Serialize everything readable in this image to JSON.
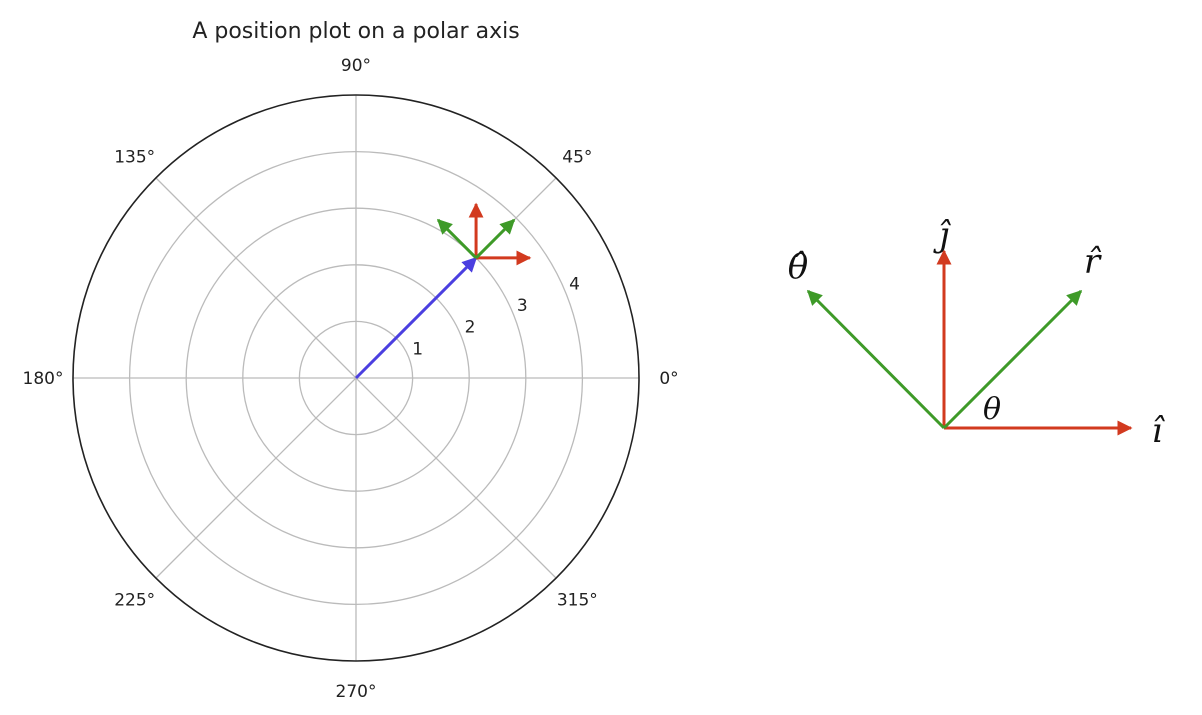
{
  "chart_data": [
    {
      "type": "polar",
      "title": "A position plot on a polar axis",
      "theta_ticks": [
        "0°",
        "45°",
        "90°",
        "135°",
        "180°",
        "225°",
        "270°",
        "315°"
      ],
      "theta_tick_values": [
        0,
        45,
        90,
        135,
        180,
        225,
        270,
        315
      ],
      "r_ticks": [
        "1",
        "2",
        "3",
        "4"
      ],
      "r_tick_values": [
        1,
        2,
        3,
        4
      ],
      "r_max": 5,
      "r_label_angle": 22.5,
      "grid": true,
      "position_vector": {
        "r": 3,
        "theta": 45,
        "color": "#4b3fe0"
      },
      "unit_vectors_at_point": [
        {
          "name": "i-hat",
          "direction_deg": 0,
          "color": "#d23a1f"
        },
        {
          "name": "j-hat",
          "direction_deg": 90,
          "color": "#d23a1f"
        },
        {
          "name": "r-hat",
          "direction_deg": 45,
          "color": "#3e9a28"
        },
        {
          "name": "theta-hat",
          "direction_deg": 135,
          "color": "#3e9a28"
        }
      ]
    },
    {
      "type": "diagram",
      "vectors": [
        {
          "name": "i-hat",
          "label": "î",
          "direction_deg": 0,
          "color": "#d23a1f"
        },
        {
          "name": "j-hat",
          "label": "ĵ",
          "direction_deg": 90,
          "color": "#d23a1f"
        },
        {
          "name": "r-hat",
          "label": "r̂",
          "direction_deg": 45,
          "color": "#3e9a28"
        },
        {
          "name": "theta-hat",
          "label": "θ̂",
          "direction_deg": 135,
          "color": "#3e9a28"
        }
      ],
      "angle_label": "θ"
    }
  ],
  "colors": {
    "red": "#d23a1f",
    "green": "#3e9a28",
    "blue": "#4b3fe0",
    "grid": "#bbbbbb",
    "frame": "#222222"
  }
}
